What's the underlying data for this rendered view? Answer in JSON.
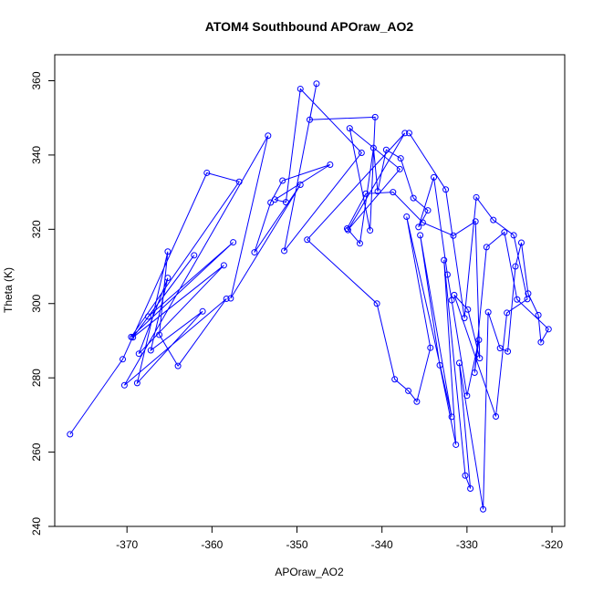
{
  "chart_data": {
    "type": "line",
    "title": "ATOM4 Southbound APOraw_AO2",
    "xlabel": "APOraw_AO2",
    "ylabel": "Theta (K)",
    "xlim": [
      -378.5,
      -318.5
    ],
    "ylim": [
      240,
      367
    ],
    "xticks": [
      -370,
      -360,
      -350,
      -340,
      -330,
      -320
    ],
    "yticks": [
      240,
      260,
      280,
      300,
      320,
      340,
      360
    ],
    "grid": false,
    "legend": "none",
    "series": [
      {
        "color": "#0000ff",
        "marker": "open-circle",
        "x": [
          -376.7,
          -370.5,
          -360.6,
          -356.8,
          -369.5,
          -357.5,
          -367.5,
          -362.1,
          -369.3,
          -358.6,
          -368.6,
          -365.2,
          -367.2,
          -361.1,
          -368.8,
          -365.2,
          -366.2,
          -364.0,
          -358.3,
          -370.3,
          -353.4,
          -357.8,
          -349.6,
          -355.0,
          -353.1,
          -351.7,
          -346.1,
          -352.6,
          -351.3,
          -349.6,
          -342.4,
          -351.5,
          -347.7,
          -348.5,
          -340.8,
          -341.4,
          -343.8,
          -337.9,
          -344.0,
          -337.3,
          -348.8,
          -340.6,
          -338.5,
          -336.9,
          -335.9,
          -334.3,
          -337.1,
          -331.8,
          -335.5,
          -333.2,
          -331.3,
          -332.7,
          -330.2,
          -329.6,
          -330.9,
          -328.1,
          -327.5,
          -326.1,
          -325.2,
          -324.3,
          -323.6,
          -322.8,
          -321.6,
          -321.3,
          -320.4,
          -324.1,
          -325.6,
          -327.7,
          -329.1,
          -328.6,
          -330.0,
          -331.8,
          -332.3,
          -333.9,
          -335.7,
          -334.6,
          -336.3,
          -337.8,
          -339.5,
          -340.5,
          -341.0,
          -342.6,
          -344.1,
          -341.9,
          -338.7,
          -335.2,
          -331.6,
          -329.0,
          -328.5,
          -329.9,
          -331.5,
          -326.6,
          -325.3,
          -322.9,
          -324.5,
          -326.9,
          -328.9,
          -330.3,
          -332.5,
          -336.8
        ],
        "y": [
          264.8,
          285.0,
          335.2,
          332.8,
          291.0,
          316.5,
          296.5,
          313.0,
          290.9,
          310.3,
          286.5,
          306.9,
          287.4,
          297.9,
          278.6,
          314.0,
          291.6,
          283.2,
          301.3,
          278.0,
          345.2,
          301.4,
          332.0,
          313.8,
          327.2,
          333.1,
          337.4,
          328.0,
          327.3,
          357.8,
          340.6,
          314.2,
          359.2,
          349.5,
          350.2,
          319.7,
          347.2,
          336.2,
          319.8,
          345.9,
          317.2,
          300.0,
          279.6,
          276.5,
          273.6,
          288.1,
          323.4,
          269.5,
          318.4,
          283.4,
          262.0,
          311.7,
          253.7,
          250.2,
          284.0,
          244.6,
          297.7,
          288.0,
          287.1,
          310.0,
          316.4,
          302.7,
          296.9,
          289.6,
          293.1,
          301.1,
          319.2,
          315.2,
          281.4,
          290.2,
          275.2,
          300.9,
          307.8,
          334.0,
          320.6,
          325.1,
          328.4,
          339.1,
          341.4,
          330.2,
          341.9,
          316.2,
          320.2,
          329.6,
          330.0,
          321.8,
          318.3,
          322.1,
          285.3,
          298.4,
          302.3,
          269.6,
          297.5,
          301.2,
          318.4,
          322.5,
          328.6,
          296.1,
          330.7,
          345.9
        ]
      }
    ]
  }
}
